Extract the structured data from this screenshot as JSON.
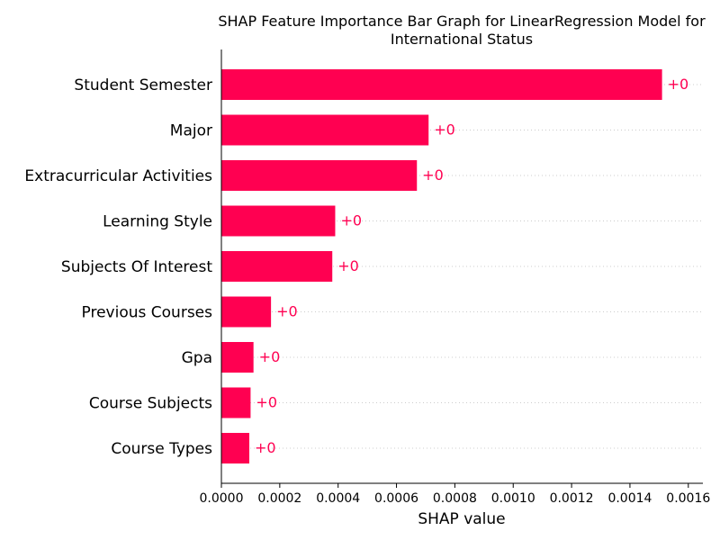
{
  "chart_data": {
    "type": "bar",
    "orientation": "horizontal",
    "title_lines": [
      "SHAP Feature Importance Bar Graph for LinearRegression Model for",
      "International Status"
    ],
    "xlabel": "SHAP value",
    "ylabel": "",
    "xlim": [
      0,
      0.00165
    ],
    "x_ticks": [
      "0.0000",
      "0.0002",
      "0.0004",
      "0.0006",
      "0.0008",
      "0.0010",
      "0.0012",
      "0.0014",
      "0.0016"
    ],
    "x_tick_values": [
      0,
      0.0002,
      0.0004,
      0.0006,
      0.0008,
      0.001,
      0.0012,
      0.0014,
      0.0016
    ],
    "categories": [
      "Student Semester",
      "Major",
      "Extracurricular Activities",
      "Learning Style",
      "Subjects Of Interest",
      "Previous Courses",
      "Gpa",
      "Course Subjects",
      "Course Types"
    ],
    "values": [
      0.00151,
      0.00071,
      0.00067,
      0.00039,
      0.00038,
      0.00017,
      0.00011,
      0.0001,
      9.56e-05
    ],
    "data_labels": [
      "+0",
      "+0",
      "+0",
      "+0",
      "+0",
      "+0",
      "+0",
      "+0",
      "+0"
    ],
    "bar_color": "#ff0051",
    "grid": "horizontal dotted lines per category",
    "legend": "none"
  }
}
